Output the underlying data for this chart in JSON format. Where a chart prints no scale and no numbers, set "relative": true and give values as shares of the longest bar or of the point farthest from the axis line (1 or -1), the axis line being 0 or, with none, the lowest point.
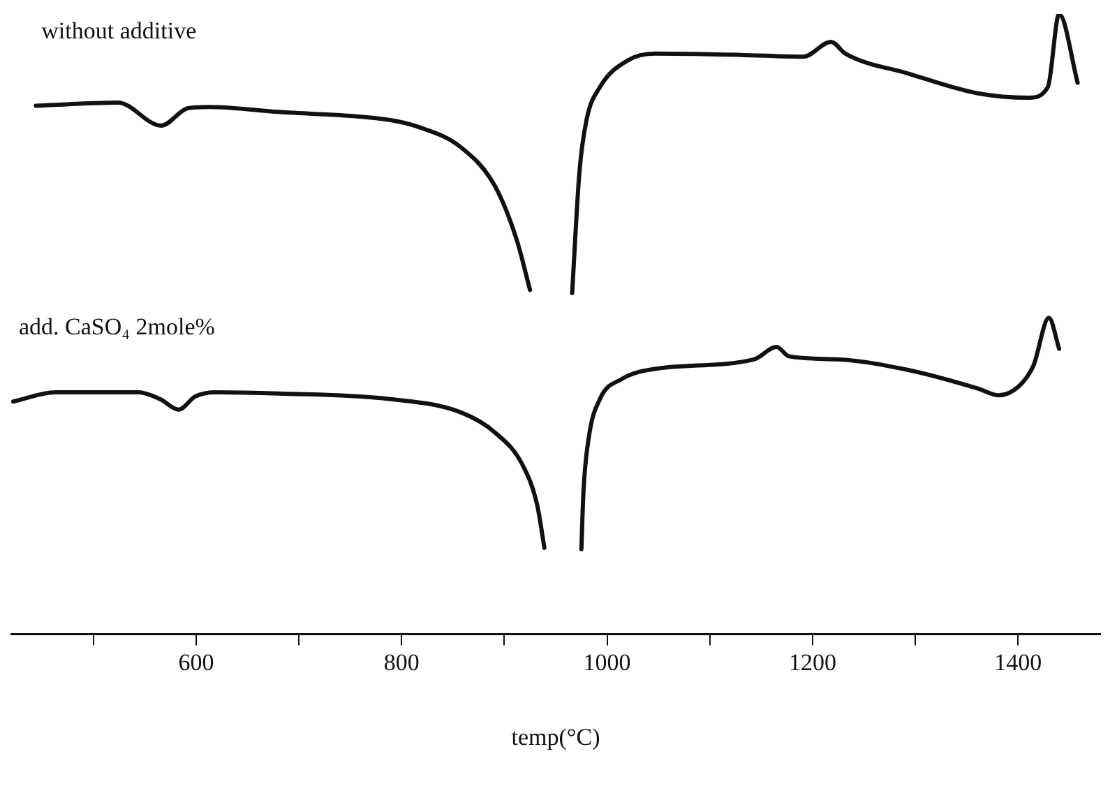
{
  "chart_data": {
    "type": "line",
    "xlabel": "temp(°C)",
    "relative": true,
    "xlim": [
      420,
      1480
    ],
    "xticks": [
      {
        "value": 500,
        "label": null
      },
      600,
      {
        "value": 700,
        "label": null
      },
      800,
      {
        "value": 900,
        "label": null
      },
      1000,
      {
        "value": 1100,
        "label": null
      },
      1200,
      {
        "value": 1300,
        "label": null
      },
      1400
    ],
    "grid": false,
    "legend": false,
    "marker": "none",
    "line_style": "solid",
    "series": [
      {
        "name": "without additive",
        "color": "#111111",
        "x": [
          444,
          524,
          566,
          592,
          612,
          680,
          789,
          816,
          857,
          891,
          912,
          925,
          945,
          966,
          973,
          980,
          993,
          1020,
          1047,
          1129,
          1191,
          1218,
          1232,
          1293,
          1361,
          1411,
          1429,
          1440,
          1458
        ],
        "values": [
          0.852,
          0.857,
          0.82,
          0.848,
          0.85,
          0.842,
          0.829,
          0.818,
          0.786,
          0.722,
          0.636,
          0.555,
          null,
          0.55,
          0.743,
          0.829,
          0.882,
          0.925,
          0.936,
          0.934,
          0.931,
          0.955,
          0.936,
          0.904,
          0.872,
          0.865,
          0.882,
          1,
          0.889
        ]
      },
      {
        "name": "add. CaSO₄ 2mole%",
        "color": "#111111",
        "x": [
          422,
          463,
          544,
          565,
          583,
          599,
          618,
          680,
          789,
          857,
          891,
          918,
          932,
          939,
          957,
          975,
          977,
          982,
          993,
          1014,
          1048,
          1143,
          1165,
          1177,
          1224,
          1293,
          1361,
          1381,
          1401,
          1415,
          1430,
          1440
        ],
        "values": [
          0.375,
          0.39,
          0.39,
          0.379,
          0.362,
          0.383,
          0.39,
          0.388,
          0.379,
          0.358,
          0.325,
          0.272,
          0.208,
          0.139,
          null,
          0.137,
          0.229,
          0.315,
          0.379,
          0.411,
          0.428,
          0.443,
          0.463,
          0.448,
          0.443,
          0.426,
          0.396,
          0.385,
          0.4,
          0.433,
          0.51,
          0.46
        ]
      }
    ]
  }
}
